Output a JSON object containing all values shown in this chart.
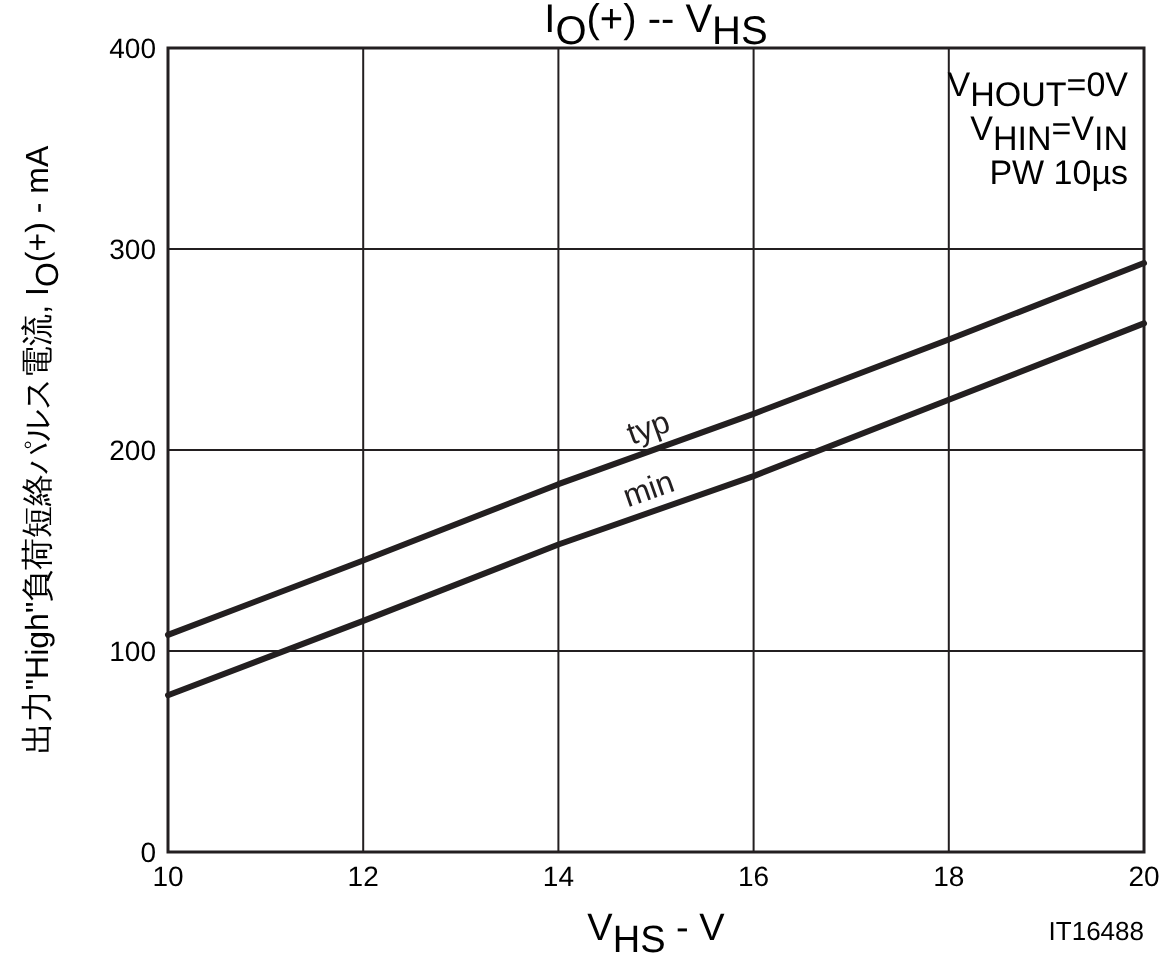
{
  "chart_data": {
    "type": "line",
    "title": "I$_{O}$(+)  --  V$_{HS}$",
    "xlabel": "V$_{HS}$  -  V",
    "ylabel": "出力\"High\"負荷短絡パルス電流, I$_{O}$(+)  -  mA",
    "x": [
      10,
      12,
      14,
      16,
      18,
      20
    ],
    "series": [
      {
        "name": "typ",
        "color": "#231f20",
        "values": [
          108,
          145,
          183,
          218,
          255,
          293
        ]
      },
      {
        "name": "min",
        "color": "#231f20",
        "values": [
          78,
          115,
          153,
          187,
          225,
          263
        ]
      }
    ],
    "xlim": [
      10,
      20
    ],
    "xticks": [
      10,
      12,
      14,
      16,
      18,
      20
    ],
    "ylim": [
      0,
      400
    ],
    "yticks": [
      0,
      100,
      200,
      300,
      400
    ],
    "grid": true,
    "marker": "none",
    "line_style": "solid",
    "annotations": [
      "V$_{HOUT}$=0V",
      "V$_{HIN}$=V$_{IN}$",
      "PW   10µs",
      "IT16488"
    ]
  }
}
